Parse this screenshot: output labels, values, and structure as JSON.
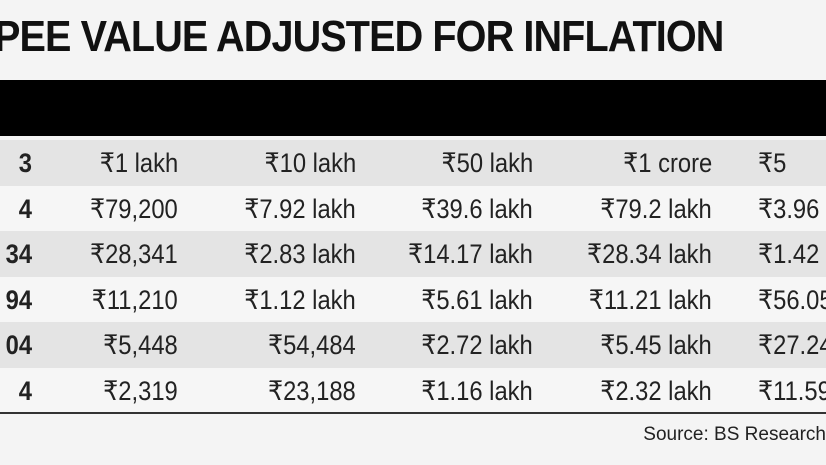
{
  "header": {
    "title": "PEE VALUE ADJUSTED FOR INFLATION"
  },
  "table": {
    "rows": [
      [
        "3",
        "₹1 lakh",
        "₹10 lakh",
        "₹50 lakh",
        "₹1 crore",
        "₹5"
      ],
      [
        "4",
        "₹79,200",
        "₹7.92 lakh",
        "₹39.6 lakh",
        "₹79.2 lakh",
        "₹3.96"
      ],
      [
        "34",
        "₹28,341",
        "₹2.83 lakh",
        "₹14.17 lakh",
        "₹28.34 lakh",
        "₹1.42"
      ],
      [
        "94",
        "₹11,210",
        "₹1.12 lakh",
        "₹5.61 lakh",
        "₹11.21 lakh",
        "₹56.05"
      ],
      [
        "04",
        "₹5,448",
        "₹54,484",
        "₹2.72 lakh",
        "₹5.45 lakh",
        "₹27.24"
      ],
      [
        "4",
        "₹2,319",
        "₹23,188",
        "₹1.16 lakh",
        "₹2.32 lakh",
        "₹11.59"
      ]
    ]
  },
  "footer": {
    "source": "Source: BS Research"
  }
}
